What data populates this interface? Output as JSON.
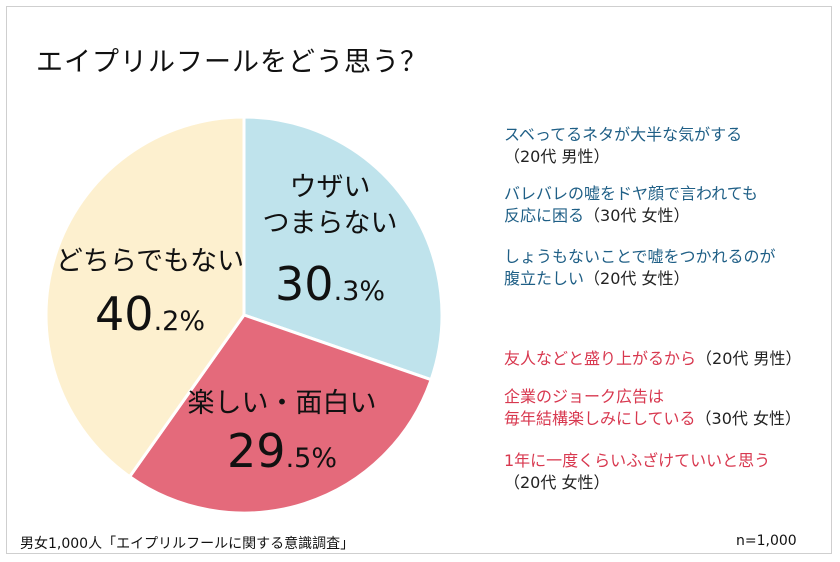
{
  "title": "エイプリルフールをどう思う？",
  "chart_data": {
    "type": "pie",
    "slices": [
      {
        "label_lines": [
          "ウザい",
          "つまらない"
        ],
        "value": 30.3,
        "big": "30",
        "small": ".3%",
        "color": "#bfe3ec"
      },
      {
        "label_lines": [
          "楽しい・面白い"
        ],
        "value": 29.5,
        "big": "29",
        "small": ".5%",
        "color": "#e46a7b"
      },
      {
        "label_lines": [
          "どちらでもない"
        ],
        "value": 40.2,
        "big": "40",
        "small": ".2%",
        "color": "#fdf0cf"
      }
    ]
  },
  "comments": {
    "negative": [
      {
        "quote": "スベってるネタが大半な気がする",
        "sub": "（20代 男性）"
      },
      {
        "quote_lines": [
          "バレバレの嘘をドヤ顔で言われても",
          "反応に困る"
        ],
        "sub": "（30代 女性）"
      },
      {
        "quote_lines": [
          "しょうもないことで嘘をつかれるのが",
          "腹立たしい"
        ],
        "sub": "（20代 女性）"
      }
    ],
    "positive": [
      {
        "quote": "友人などと盛り上がるから",
        "sub": "（20代 男性）"
      },
      {
        "quote_lines": [
          "企業のジョーク広告は",
          "毎年結構楽しみにしている"
        ],
        "sub": "（30代 女性）"
      },
      {
        "quote": "1年に一度くらいふざけていいと思う",
        "sub": "（20代 女性）"
      }
    ]
  },
  "footer": {
    "source": "男女1,000人「エイプリルフールに関する意識調査」",
    "n": "n=1,000"
  }
}
